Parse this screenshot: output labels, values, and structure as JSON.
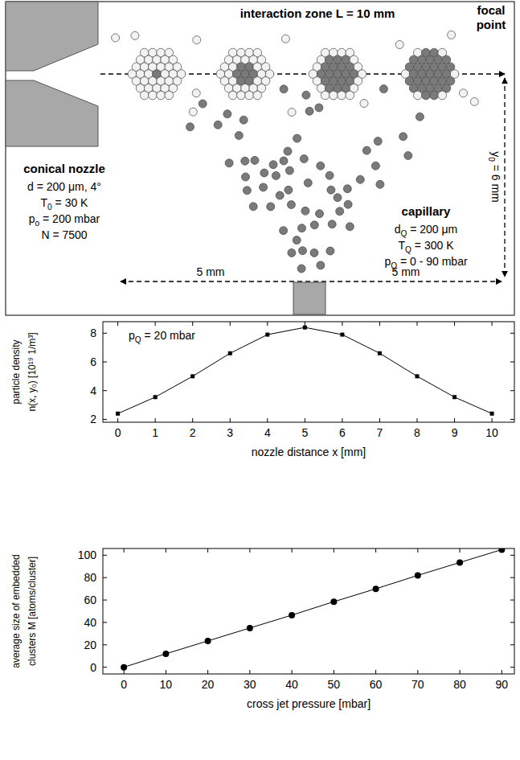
{
  "diagram": {
    "interaction_zone": "interaction zone L = 10 mm",
    "focal_point": "focal point",
    "nozzle": {
      "title": "conical nozzle",
      "params": [
        [
          "d = 200 μm, 4°"
        ],
        [
          "T",
          "0",
          " = 30 K"
        ],
        [
          "p",
          "o",
          " = 200 mbar"
        ],
        [
          "N = 7500"
        ]
      ]
    },
    "capillary": {
      "title": "capillary",
      "params": [
        [
          "d",
          "Q",
          " = 200 μm"
        ],
        [
          "T",
          "Q",
          " = 300 K"
        ],
        [
          "p",
          "Q",
          " = 0 - 90 mbar"
        ]
      ]
    },
    "y_distance": [
      "y",
      "0",
      " = 6 mm"
    ],
    "x_distances": [
      "5 mm",
      "5 mm"
    ]
  },
  "chart_data": [
    {
      "type": "line",
      "x": [
        0,
        1,
        2,
        3,
        4,
        5,
        6,
        7,
        8,
        9,
        10
      ],
      "series": [
        {
          "color": "#000000",
          "marker": "square",
          "values": [
            2.4,
            3.55,
            5.0,
            6.6,
            7.9,
            8.4,
            7.9,
            6.6,
            5.0,
            3.55,
            2.4
          ]
        }
      ],
      "xlim": [
        -0.4,
        10.6
      ],
      "ylim": [
        1.8,
        8.8
      ],
      "xticks": [
        0,
        1,
        2,
        3,
        4,
        5,
        6,
        7,
        8,
        9,
        10
      ],
      "yticks": [
        2,
        4,
        6,
        8
      ],
      "x_label": "nozzle distance x [mm]",
      "y_label": [
        "particle density",
        "n(x, y₀) [10¹⁹ 1/m³]"
      ],
      "annotation": [
        "p",
        "Q",
        " = 20 mbar"
      ]
    },
    {
      "type": "line",
      "x": [
        0,
        10,
        20,
        30,
        40,
        50,
        60,
        70,
        80,
        90
      ],
      "series": [
        {
          "color": "#000000",
          "marker": "circle",
          "values": [
            0,
            12,
            23.5,
            35,
            46.5,
            58.5,
            70,
            82,
            93.5,
            105
          ]
        }
      ],
      "xlim": [
        -5,
        93
      ],
      "ylim": [
        -6,
        106
      ],
      "xticks": [
        0,
        10,
        20,
        30,
        40,
        50,
        60,
        70,
        80,
        90
      ],
      "yticks": [
        0,
        20,
        40,
        60,
        80,
        100
      ],
      "x_label": "cross jet pressure [mbar]",
      "y_label": [
        "average size of embedded",
        "clusters M [atoms/cluster]"
      ]
    }
  ]
}
